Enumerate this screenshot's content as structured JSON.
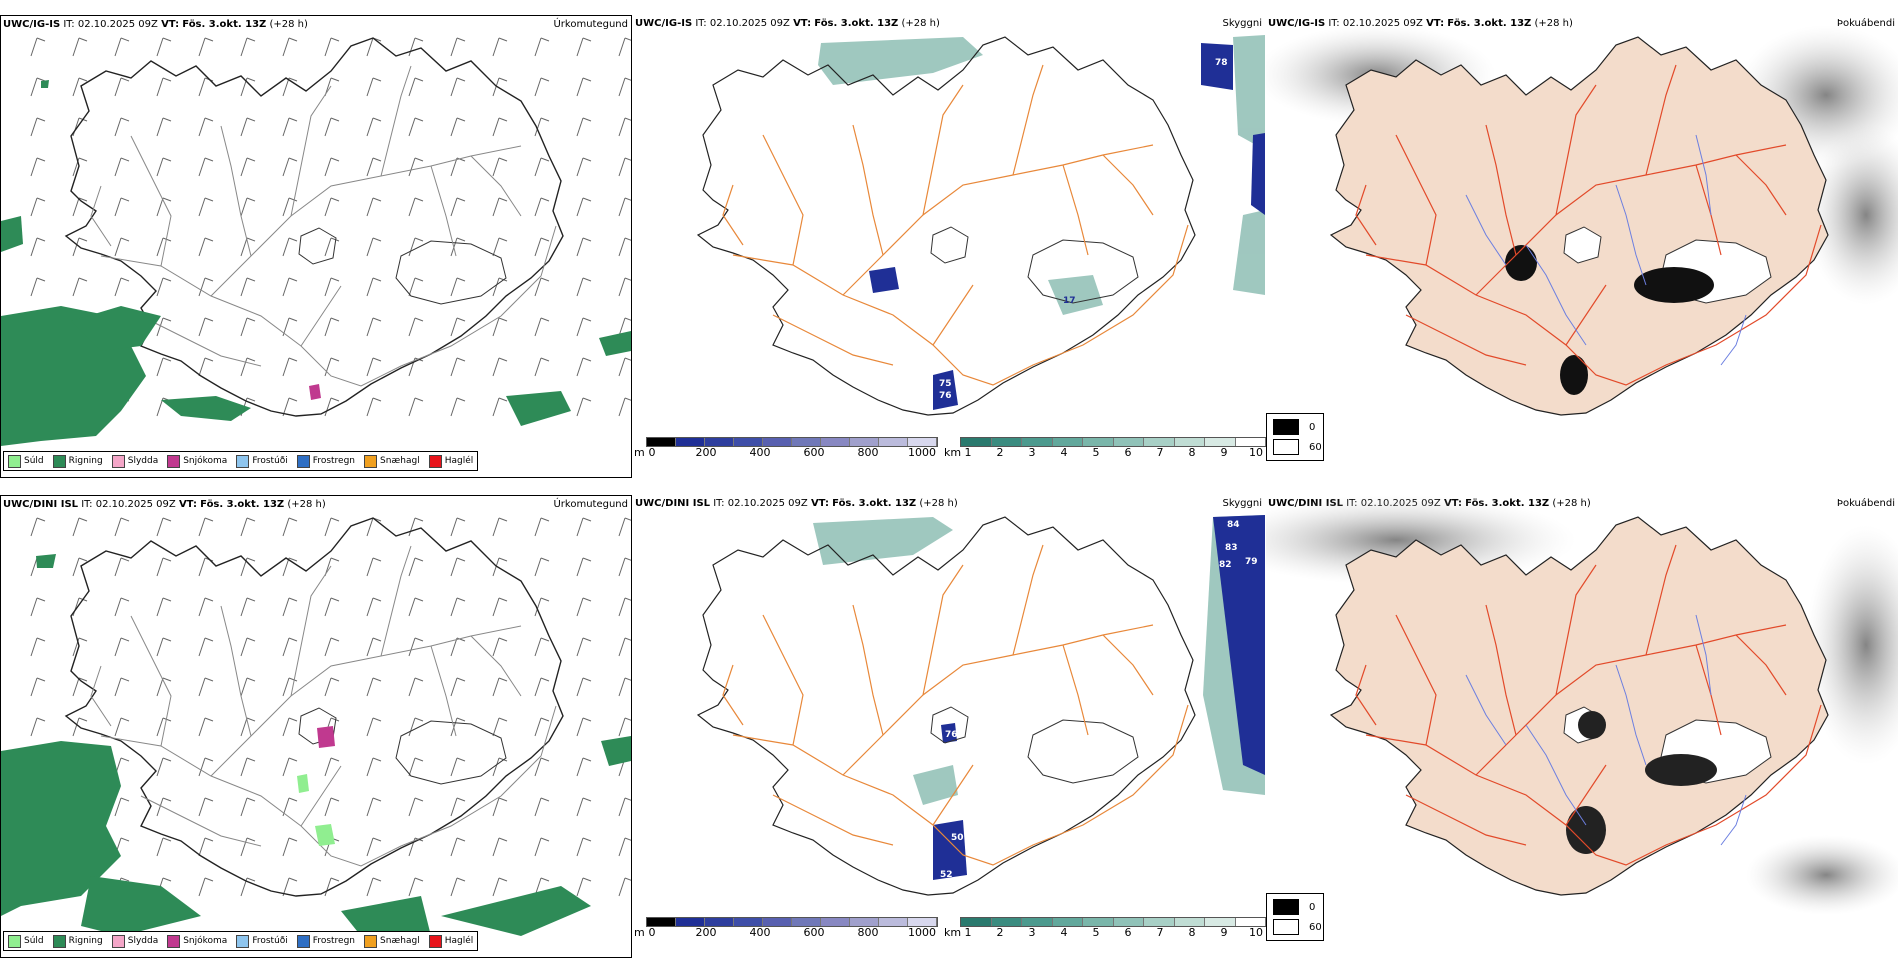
{
  "rows": [
    {
      "model": "UWC/IG-IS",
      "it_label": "IT:",
      "it_value": "02.10.2025 09Z",
      "vt_label": "VT:",
      "vt_value": "Fös. 3.okt. 13Z",
      "lead": "(+28 h)",
      "cloud_labels": [
        "78",
        "75",
        "76",
        "17"
      ]
    },
    {
      "model": "UWC/DINI ISL",
      "it_label": "IT:",
      "it_value": "02.10.2025 09Z",
      "vt_label": "VT:",
      "vt_value": "Fös. 3.okt. 13Z",
      "lead": "(+28 h)",
      "cloud_labels": [
        "84",
        "83",
        "82",
        "79",
        "76",
        "50",
        "52"
      ]
    }
  ],
  "panel_tags": {
    "precip": "Úrkomutegund",
    "cloud": "Skyggni",
    "fog": "Þokuábendi"
  },
  "precip_legend": [
    {
      "label": "Súld",
      "color": "#90ee90"
    },
    {
      "label": "Rigning",
      "color": "#2e8b57"
    },
    {
      "label": "Slydda",
      "color": "#f4a6c8"
    },
    {
      "label": "Snjókoma",
      "color": "#c0398f"
    },
    {
      "label": "Frostúði",
      "color": "#8ec5ee"
    },
    {
      "label": "Frostregn",
      "color": "#2f6fc4"
    },
    {
      "label": "Snæhagl",
      "color": "#f0a020"
    },
    {
      "label": "Haglél",
      "color": "#e8141b"
    }
  ],
  "cbar_m": {
    "unit": "m",
    "ticks": [
      "0",
      "200",
      "400",
      "600",
      "800",
      "1000"
    ]
  },
  "cbar_km": {
    "unit": "km",
    "ticks": [
      "1",
      "2",
      "3",
      "4",
      "5",
      "6",
      "7",
      "8",
      "9",
      "10"
    ]
  },
  "fog_legend": {
    "dark": "0",
    "light": "60"
  },
  "colors": {
    "rain": "#2e8b57",
    "road_orange": "#e8883a",
    "road_red": "#e24a2a",
    "land_fog": "#f3dccb",
    "cloud_low": "#1f2f96",
    "cloud_vis": "#7fb5aa"
  }
}
